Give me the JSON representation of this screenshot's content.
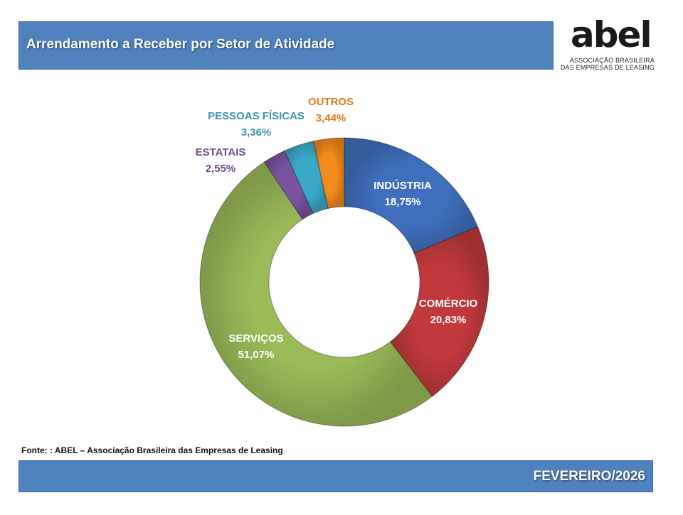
{
  "header": {
    "title": "Arrendamento a Receber por Setor de Atividade"
  },
  "logo": {
    "word": "abel",
    "line1": "ASSOCIAÇÃO BRASILEIRA",
    "line2": "DAS EMPRESAS DE LEASING"
  },
  "source": "Fonte: : ABEL – Associação Brasileira das Empresas de Leasing",
  "footer": {
    "date": "FEVEREIRO/2026"
  },
  "chart_data": {
    "type": "pie",
    "donut": true,
    "title": "",
    "slices": [
      {
        "label": "INDÚSTRIA",
        "value": 18.75,
        "text": "18,75%",
        "color": "#3f6fbc",
        "label_color": "#ffffff"
      },
      {
        "label": "COMÉRCIO",
        "value": 20.83,
        "text": "20,83%",
        "color": "#c0393b",
        "label_color": "#ffffff"
      },
      {
        "label": "SERVIÇOS",
        "value": 51.07,
        "text": "51,07%",
        "color": "#9bbb59",
        "label_color": "#ffffff"
      },
      {
        "label": "ESTATAIS",
        "value": 2.55,
        "text": "2,55%",
        "color": "#7a52a0",
        "label_color": "#6e4b94"
      },
      {
        "label": "PESSOAS FÍSICAS",
        "value": 3.36,
        "text": "3,36%",
        "color": "#3aa9c6",
        "label_color": "#3a93b0"
      },
      {
        "label": "OUTROS",
        "value": 3.44,
        "text": "3,44%",
        "color": "#f28a1e",
        "label_color": "#e47a14"
      }
    ]
  }
}
